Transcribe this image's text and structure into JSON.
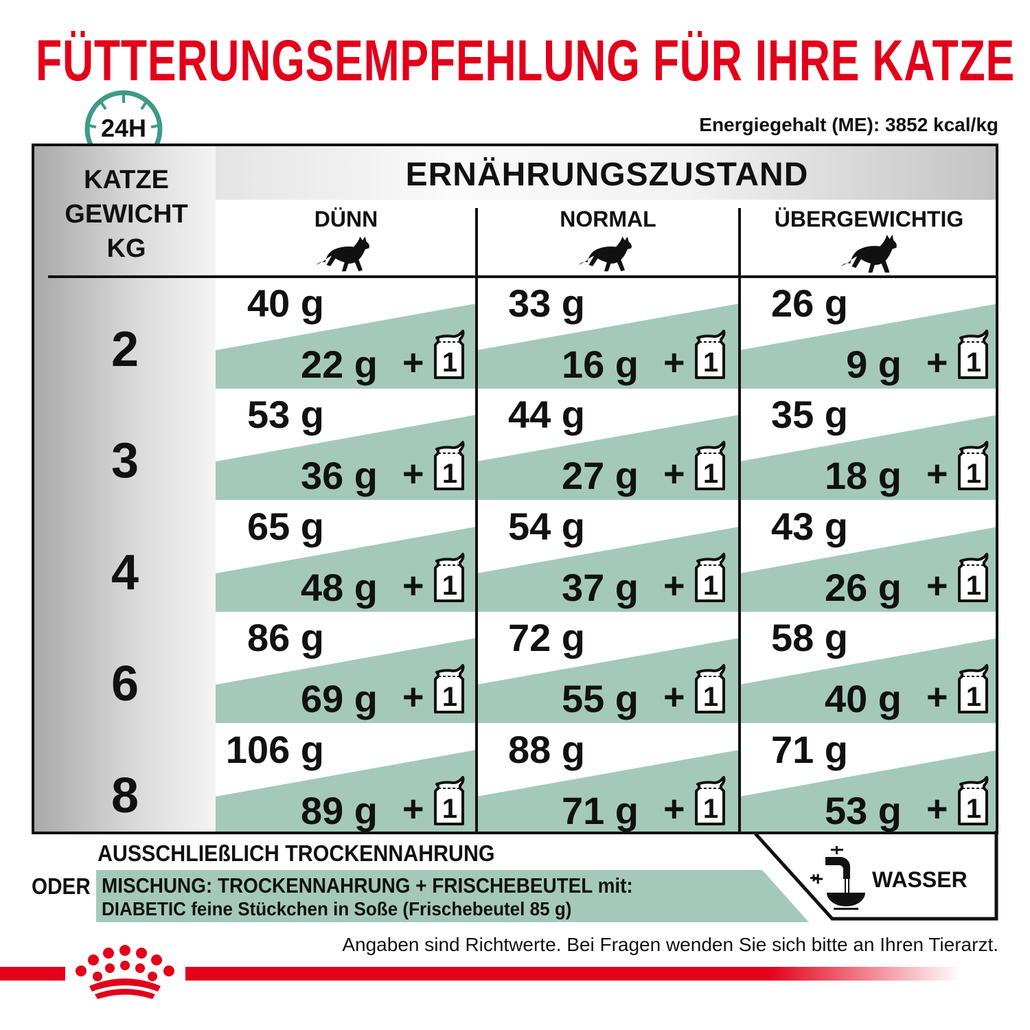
{
  "title": "FÜTTERUNGSEMPFEHLUNG FÜR IHRE KATZE",
  "energy": "Energiegehalt (ME): 3852 kcal/kg",
  "clock_label": "24H",
  "colors": {
    "brand_red": "#e2001a",
    "mix_green": "#a4c9bb",
    "clock_teal": "#3e9a86"
  },
  "header": {
    "weight_lines": [
      "KATZE",
      "GEWICHT",
      "KG"
    ],
    "condition": "ERNÄHRUNGSZUSTAND",
    "columns": [
      "DÜNN",
      "NORMAL",
      "ÜBERGEWICHTIG"
    ]
  },
  "pouch_label": "1",
  "plus": "+",
  "rows": [
    {
      "weight": "2",
      "cells": [
        {
          "dry": "40 g",
          "mix": "22 g"
        },
        {
          "dry": "33 g",
          "mix": "16 g"
        },
        {
          "dry": "26 g",
          "mix": "9 g"
        }
      ]
    },
    {
      "weight": "3",
      "cells": [
        {
          "dry": "53 g",
          "mix": "36 g"
        },
        {
          "dry": "44 g",
          "mix": "27 g"
        },
        {
          "dry": "35 g",
          "mix": "18 g"
        }
      ]
    },
    {
      "weight": "4",
      "cells": [
        {
          "dry": "65 g",
          "mix": "48 g"
        },
        {
          "dry": "54 g",
          "mix": "37 g"
        },
        {
          "dry": "43 g",
          "mix": "26 g"
        }
      ]
    },
    {
      "weight": "6",
      "cells": [
        {
          "dry": "86 g",
          "mix": "69 g"
        },
        {
          "dry": "72 g",
          "mix": "55 g"
        },
        {
          "dry": "58 g",
          "mix": "40 g"
        }
      ]
    },
    {
      "weight": "8",
      "cells": [
        {
          "dry": "106 g",
          "mix": "89 g"
        },
        {
          "dry": "88 g",
          "mix": "71 g"
        },
        {
          "dry": "71 g",
          "mix": "53 g"
        }
      ]
    }
  ],
  "legend": {
    "dry_only": "AUSSCHLIEßLICH TROCKENNAHRUNG",
    "or": "ODER",
    "mix_line1": "MISCHUNG: TROCKENNAHRUNG + FRISCHEBEUTEL mit:",
    "mix_line2": "DIABETIC feine Stückchen in Soße (Frischebeutel 85 g)",
    "water_plus": "+",
    "water": "WASSER"
  },
  "footnote": "Angaben sind Richtwerte. Bei Fragen wenden Sie sich bitte an Ihren Tierarzt.",
  "icons": {
    "clock": "clock-24h-icon",
    "cat": "cat-silhouette-icon",
    "pouch": "pouch-icon",
    "water": "water-tap-bowl-icon",
    "logo": "royal-canin-crown-logo"
  }
}
